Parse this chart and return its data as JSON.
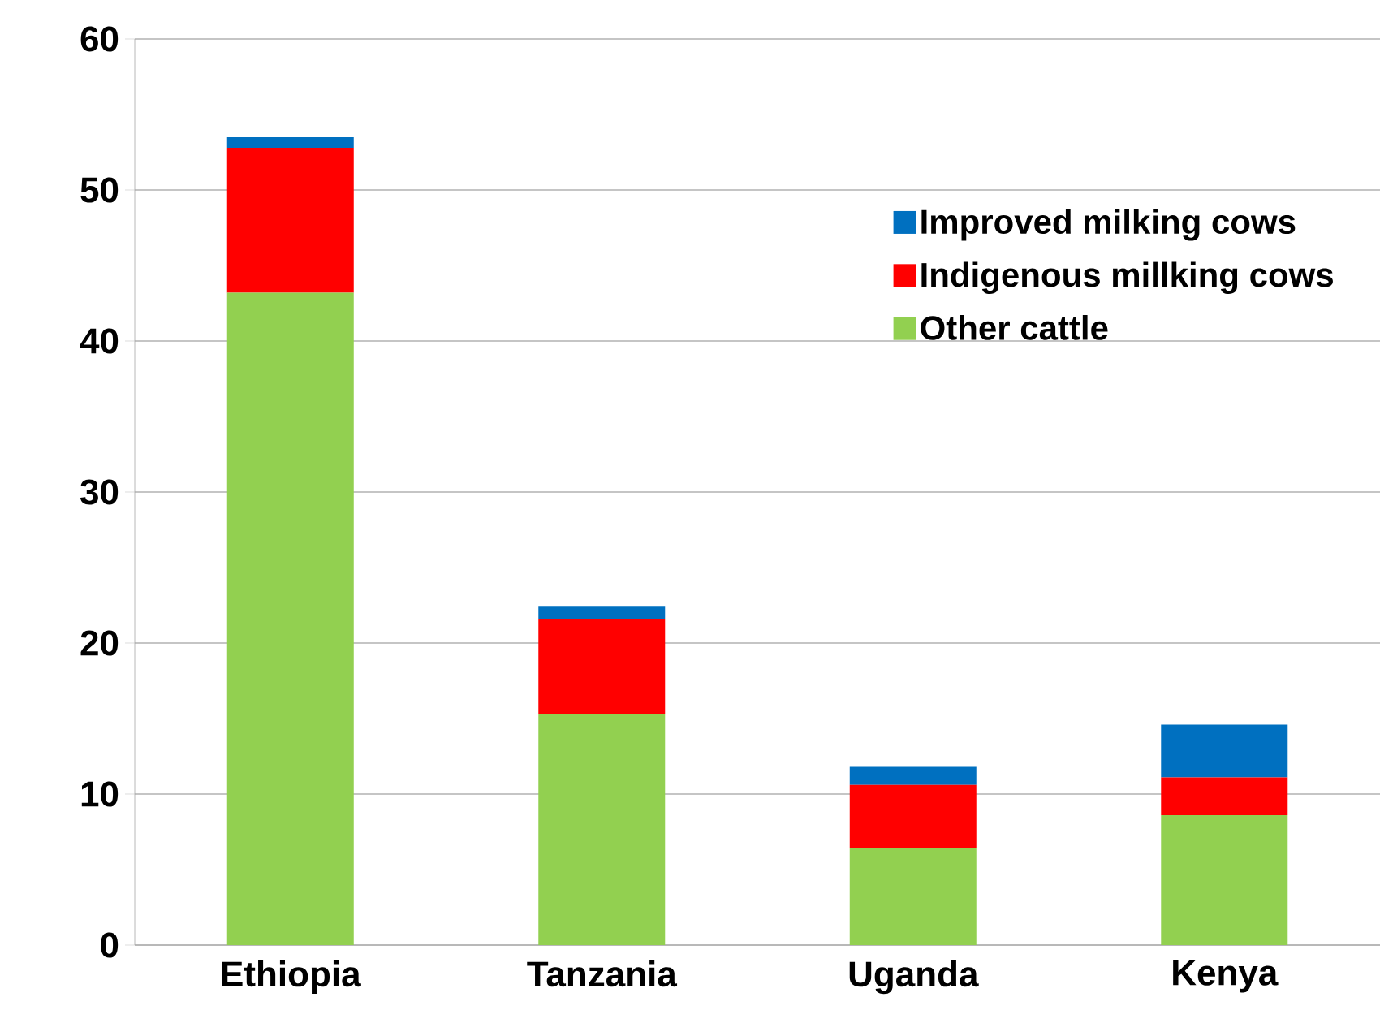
{
  "chart_data": {
    "type": "bar",
    "stacked": true,
    "categories": [
      "Ethiopia",
      "Tanzania",
      "Uganda",
      "Kenya"
    ],
    "series": [
      {
        "name": "Other cattle",
        "color": "#92d050",
        "values": [
          43.2,
          15.3,
          6.4,
          8.6
        ]
      },
      {
        "name": "Indigenous millking cows",
        "color": "#ff0000",
        "values": [
          9.6,
          6.3,
          4.2,
          2.5
        ]
      },
      {
        "name": "Improved milking cows",
        "color": "#0070c0",
        "values": [
          0.7,
          0.8,
          1.2,
          3.5
        ]
      }
    ],
    "ylim": [
      0,
      60
    ],
    "yticks": [
      0,
      10,
      20,
      30,
      40,
      50,
      60
    ],
    "grid": "y",
    "legend": "top right"
  }
}
